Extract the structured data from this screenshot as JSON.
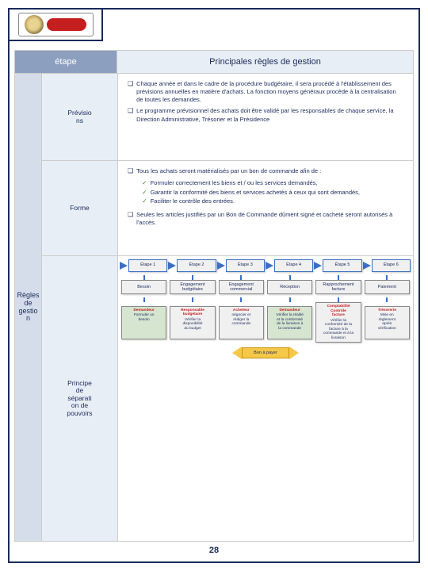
{
  "header": {
    "left": "étape",
    "right": "Principales règles de gestion"
  },
  "vertical_label": "Règles\nde\ngestio\nn",
  "stages": {
    "s1": "Prévisio\nns",
    "s2": "Forme",
    "s3": "Principe\nde\nséparati\non de\npouvoirs"
  },
  "cell1": {
    "b1": "Chaque année et dans le cadre de la procédure budgétaire, il sera procédé à l'établissement des prévisions annuelles en matière d'achats. La fonction moyens généraux procède à la centralisation de toutes les demandes.",
    "b2": "Le programme prévisionnel des achats doit être validé par les responsables de chaque service, la Direction Administrative, Trésorier et la Présidence"
  },
  "cell2": {
    "b1": "Tous les achats seront matérialisés par un bon de commande afin de :",
    "sb1": "Formuler correctement les biens et / ou les services demandés,",
    "sb2": "Garantir la conformité des biens et services achetés à ceux qui sont demandés,",
    "sb3": "Faciliter le contrôle des entrées.",
    "b2": "Seules les articles justifiés par un Bon de Commande dûment signé et cacheté seront autorisés à l'accès."
  },
  "flow": {
    "steps": [
      "Étape 1",
      "Étape 2",
      "Étape 3",
      "Étape 4",
      "Étape 5",
      "Étape 6"
    ],
    "acts": [
      "Besoin",
      "Engagement\nbudgétaire",
      "Engagement\ncommercial",
      "Réception",
      "Rapprochement\nfacture",
      "Paiement"
    ],
    "resp": [
      {
        "t": "Demandeur",
        "d": "Formuler un\nbesoin",
        "bg": "#d5e5d0"
      },
      {
        "t": "Responsable\nbudgétaire",
        "d": "Vérifier la\ndisponibilité\ndu budget",
        "bg": "#f0f0f0"
      },
      {
        "t": "Acheteur",
        "d": "négocier et\nrédiger la\ncommande",
        "bg": "#f0f0f0"
      },
      {
        "t": "Demandeur",
        "d": "Vérifier la réalité\net la conformité\nde la livraison à\nla commande",
        "bg": "#d5e5d0"
      },
      {
        "t": "Comptabilité\nContrôle\nfacture",
        "d": "Vérifier la\nconformité de la\nfacture à la\ncommande et à la\nlivraison",
        "bg": "#f0f0f0"
      },
      {
        "t": "Trésorerie",
        "d": "Mise en\nrèglement\naprès\nvérification",
        "bg": "#f0f0f0"
      }
    ],
    "bonpayer": "Bon à payer"
  },
  "page": "28"
}
